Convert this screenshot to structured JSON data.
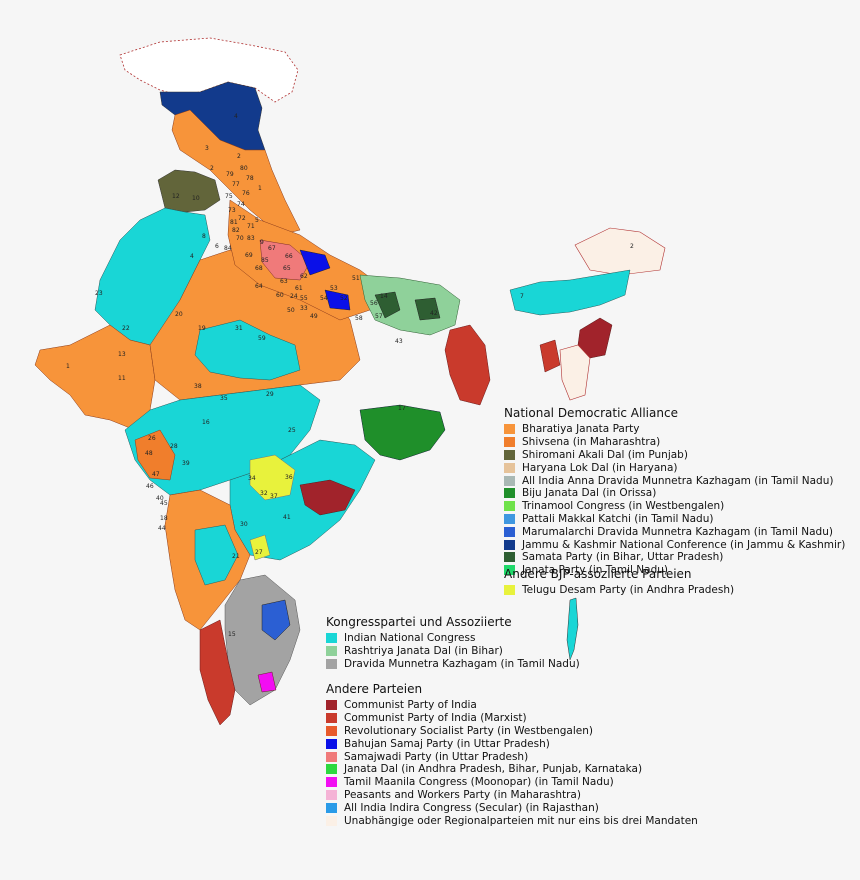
{
  "map": {
    "district_labels": [
      "4",
      "2",
      "1",
      "2",
      "12",
      "10",
      "8",
      "2",
      "3",
      "5",
      "7",
      "23",
      "4",
      "22",
      "20",
      "19",
      "13",
      "1",
      "11",
      "16",
      "36",
      "14",
      "15",
      "17",
      "18",
      "21",
      "28",
      "31",
      "32",
      "33",
      "34",
      "35",
      "24",
      "25",
      "26",
      "27",
      "29",
      "30",
      "37",
      "38",
      "39",
      "40",
      "41",
      "42",
      "43",
      "44",
      "45",
      "46",
      "47",
      "48",
      "49",
      "50",
      "59",
      "60",
      "61",
      "62",
      "63",
      "64",
      "65",
      "66",
      "67",
      "68",
      "69",
      "70",
      "71",
      "72",
      "73",
      "74",
      "75",
      "76",
      "77",
      "78",
      "79",
      "80",
      "81",
      "82",
      "83",
      "84",
      "85",
      "51",
      "52",
      "53",
      "54",
      "55",
      "56",
      "57",
      "58",
      "6",
      "9"
    ]
  },
  "legend": {
    "nda": {
      "title": "National Democratic Alliance",
      "items": [
        {
          "label": "Bharatiya Janata Party",
          "color": "#f7943a"
        },
        {
          "label": "Shivsena (in Maharashtra)",
          "color": "#f07e2c"
        },
        {
          "label": "Shiromani Akali Dal (im Punjab)",
          "color": "#62653a"
        },
        {
          "label": "Haryana Lok Dal (in Haryana)",
          "color": "#e6c39a"
        },
        {
          "label": "All India Anna Dravida Munnetra Kazhagam (in Tamil Nadu)",
          "color": "#a9b8b4"
        },
        {
          "label": "Biju Janata Dal (in Orissa)",
          "color": "#1f8f2a"
        },
        {
          "label": "Trinamool Congress (in Westbengalen)",
          "color": "#6fe24a"
        },
        {
          "label": "Pattali Makkal Katchi (in Tamil Nadu)",
          "color": "#3f97e0"
        },
        {
          "label": "Marumalarchi Dravida Munnetra Kazhagam (in Tamil Nadu)",
          "color": "#2b5fd3"
        },
        {
          "label": "Jammu & Kashmir National Conference (in Jammu & Kashmir)",
          "color": "#123a8c"
        },
        {
          "label": "Samata Party (in Bihar, Uttar Pradesh)",
          "color": "#2e5e32"
        },
        {
          "label": "Janata Party (in Tamil Nadu)",
          "color": "#1fd96a"
        }
      ]
    },
    "bjp_other": {
      "title": "Andere BJP-assoziierte Parteien",
      "items": [
        {
          "label": "Telugu Desam Party (in Andhra Pradesh)",
          "color": "#e8f23c"
        }
      ]
    },
    "congress": {
      "title": "Kongresspartei und Assoziierte",
      "items": [
        {
          "label": "Indian National Congress",
          "color": "#19d6d6"
        },
        {
          "label": "Rashtriya Janata Dal (in Bihar)",
          "color": "#8fd19a"
        },
        {
          "label": "Dravida Munnetra Kazhagam (in Tamil Nadu)",
          "color": "#a3a3a3"
        }
      ]
    },
    "others": {
      "title": "Andere Parteien",
      "items": [
        {
          "label": "Communist Party of India",
          "color": "#a1232b"
        },
        {
          "label": "Communist Party of India (Marxist)",
          "color": "#c93a2c"
        },
        {
          "label": "Revolutionary Socialist Party (in Westbengalen)",
          "color": "#e85a2c"
        },
        {
          "label": "Bahujan Samaj Party (in Uttar Pradesh)",
          "color": "#0a10e8"
        },
        {
          "label": "Samajwadi Party (in Uttar Pradesh)",
          "color": "#f07a7a"
        },
        {
          "label": "Janata Dal (in Andhra Pradesh, Bihar, Punjab, Karnataka)",
          "color": "#2dd93f"
        },
        {
          "label": "Tamil Maanila Congress (Moonopar) (in Tamil Nadu)",
          "color": "#f20ef2"
        },
        {
          "label": "Peasants and Workers Party (in Maharashtra)",
          "color": "#f5b3d6"
        },
        {
          "label": "All India Indira Congress (Secular) (in Rajasthan)",
          "color": "#2a9be8"
        },
        {
          "label": "Unabhängige oder Regionalparteien mit nur eins bis drei Mandaten",
          "color": "#fbf0e6"
        }
      ]
    }
  }
}
